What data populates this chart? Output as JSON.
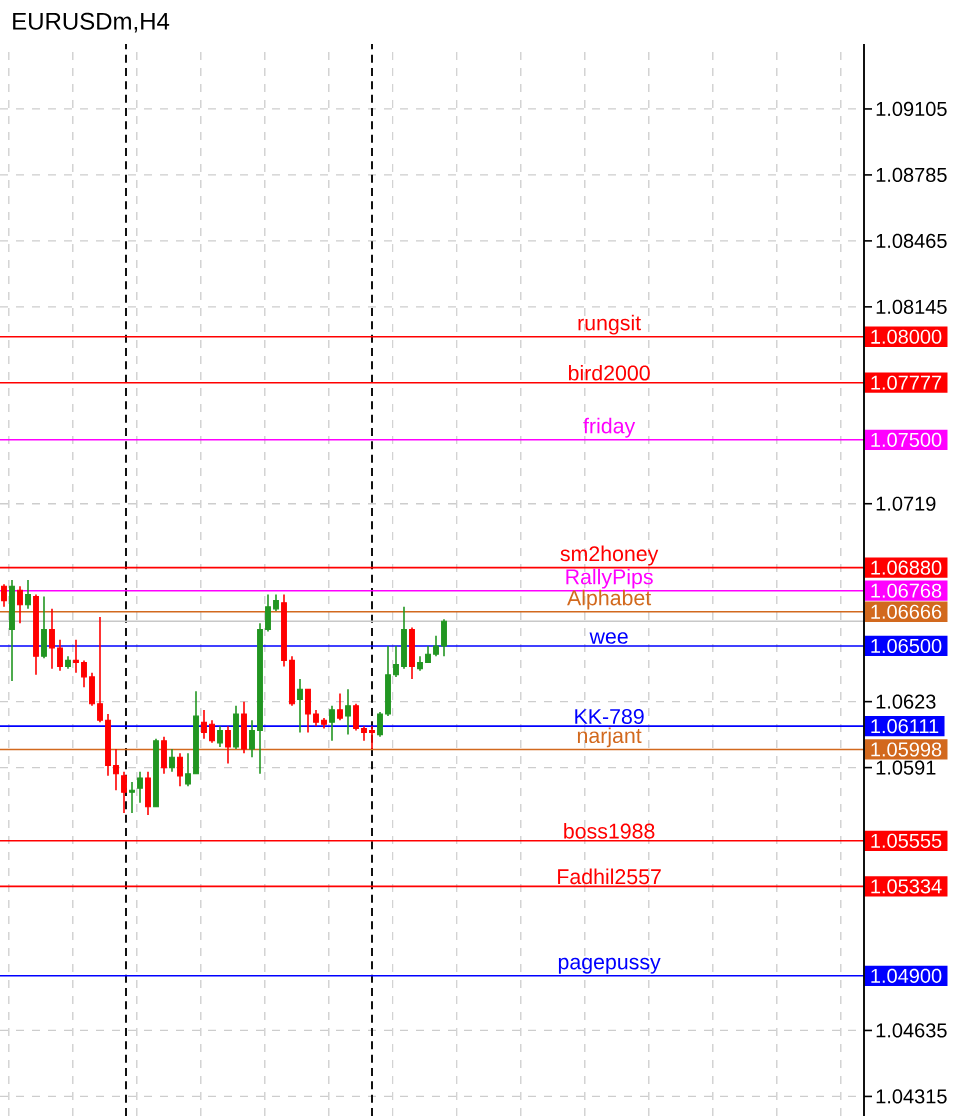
{
  "chart_data": {
    "type": "candlestick",
    "title": "EURUSDm,H4",
    "categories": [
      null,
      null,
      null,
      null,
      null,
      null,
      null,
      null,
      null,
      null,
      null,
      null,
      null,
      null,
      null,
      null,
      null,
      null,
      null,
      null,
      null,
      null,
      null,
      null,
      null,
      null,
      null,
      null,
      null,
      null,
      null,
      null,
      null,
      null,
      null,
      null,
      null,
      null,
      null,
      null,
      null,
      null,
      null,
      null,
      null,
      null,
      null,
      null,
      null,
      null,
      null,
      null,
      null,
      null,
      null,
      null,
      null,
      null,
      null,
      null,
      null,
      null,
      null,
      null,
      null,
      null,
      null,
      null,
      null,
      null,
      null,
      null,
      null,
      null,
      null,
      null,
      null,
      null,
      null,
      null,
      null,
      null,
      null,
      null,
      null,
      null,
      null,
      null,
      null,
      null,
      null,
      null,
      null,
      null,
      null,
      null,
      null,
      null,
      null,
      null,
      null,
      null,
      null,
      null,
      null,
      null,
      null,
      null
    ],
    "ohlc": [
      [
        1.0679,
        1.068,
        1.0669,
        1.0672
      ],
      [
        1.0658,
        1.0682,
        1.0633,
        1.0679
      ],
      [
        1.0677,
        1.0679,
        1.0661,
        1.067
      ],
      [
        1.067,
        1.0682,
        1.0668,
        1.0675
      ],
      [
        1.0674,
        1.0675,
        1.0636,
        1.0645
      ],
      [
        1.0645,
        1.0674,
        1.0644,
        1.0658
      ],
      [
        1.0658,
        1.0668,
        1.0639,
        1.0649
      ],
      [
        1.0649,
        1.0653,
        1.0638,
        1.064
      ],
      [
        1.064,
        1.0645,
        1.0639,
        1.0643
      ],
      [
        1.0643,
        1.0653,
        1.0637,
        1.0642
      ],
      [
        1.0642,
        1.0643,
        1.063,
        1.0635
      ],
      [
        1.0635,
        1.0637,
        1.0621,
        1.0622
      ],
      [
        1.0622,
        1.0664,
        1.0613,
        1.0614
      ],
      [
        1.0614,
        1.0617,
        1.0587,
        1.0592
      ],
      [
        1.0592,
        1.06,
        1.058,
        1.0588
      ],
      [
        1.0587,
        1.0589,
        1.0569,
        1.0579
      ],
      [
        1.0579,
        1.0584,
        1.0569,
        1.058
      ],
      [
        1.0581,
        1.0589,
        1.0574,
        1.0586
      ],
      [
        1.0586,
        1.0589,
        1.0568,
        1.0572
      ],
      [
        1.0572,
        1.0605,
        1.0572,
        1.0604
      ],
      [
        1.0604,
        1.0606,
        1.0588,
        1.0591
      ],
      [
        1.0591,
        1.06,
        1.0589,
        1.0596
      ],
      [
        1.0596,
        1.0598,
        1.0582,
        1.0587
      ],
      [
        1.0583,
        1.0598,
        1.0582,
        1.0588
      ],
      [
        1.0588,
        1.0628,
        1.0588,
        1.0616
      ],
      [
        1.0613,
        1.0619,
        1.0605,
        1.0608
      ],
      [
        1.0612,
        1.0614,
        1.0603,
        1.0604
      ],
      [
        1.0603,
        1.0611,
        1.0601,
        1.0609
      ],
      [
        1.0609,
        1.0611,
        1.0593,
        1.0601
      ],
      [
        1.0601,
        1.0621,
        1.06,
        1.0617
      ],
      [
        1.0617,
        1.0623,
        1.0598,
        1.06
      ],
      [
        1.06,
        1.0614,
        1.0596,
        1.0609
      ],
      [
        1.0609,
        1.0661,
        1.0588,
        1.0658
      ],
      [
        1.0658,
        1.0675,
        1.0657,
        1.0669
      ],
      [
        1.0668,
        1.0675,
        1.0667,
        1.0672
      ],
      [
        1.0671,
        1.0675,
        1.064,
        1.0643
      ],
      [
        1.0643,
        1.0645,
        1.0621,
        1.0622
      ],
      [
        1.0624,
        1.0634,
        1.0608,
        1.0629
      ],
      [
        1.0629,
        1.0629,
        1.0608,
        1.0617
      ],
      [
        1.0617,
        1.0619,
        1.0611,
        1.0613
      ],
      [
        1.0614,
        1.0615,
        1.061,
        1.0612
      ],
      [
        1.0613,
        1.0621,
        1.0604,
        1.0619
      ],
      [
        1.0619,
        1.0627,
        1.0614,
        1.0615
      ],
      [
        1.0616,
        1.0629,
        1.0607,
        1.0621
      ],
      [
        1.0621,
        1.0622,
        1.0609,
        1.061
      ],
      [
        1.061,
        1.0611,
        1.0604,
        1.0608
      ],
      [
        1.0609,
        1.0611,
        1.06,
        1.0608
      ],
      [
        1.0607,
        1.0618,
        1.0606,
        1.0617
      ],
      [
        1.0617,
        1.065,
        1.0616,
        1.0636
      ],
      [
        1.0636,
        1.065,
        1.0635,
        1.0641
      ],
      [
        1.064,
        1.0669,
        1.0639,
        1.0658
      ],
      [
        1.0658,
        1.0659,
        1.0634,
        1.064
      ],
      [
        1.0639,
        1.0645,
        1.0638,
        1.0642
      ],
      [
        1.0642,
        1.065,
        1.0642,
        1.0646
      ],
      [
        1.0646,
        1.0655,
        1.0645,
        1.065
      ],
      [
        1.065,
        1.0663,
        1.0645,
        1.0662
      ],
      null,
      null,
      null,
      null,
      null,
      null,
      null,
      null,
      null,
      null,
      null,
      null,
      null,
      null,
      null,
      null,
      null,
      null,
      null,
      null,
      null,
      null,
      null,
      null,
      null,
      null,
      null,
      null,
      null,
      null,
      null,
      null,
      null,
      null,
      null,
      null,
      null,
      null,
      null,
      null,
      null,
      null,
      null,
      null,
      null,
      null,
      null,
      null,
      null,
      null,
      null,
      null
    ],
    "ylim": [
      1.0422,
      1.0942
    ],
    "yticks": [
      1.09105,
      1.08785,
      1.08465,
      1.08145,
      1.0719,
      1.0623,
      1.0591,
      1.04635,
      1.04315
    ],
    "grid": true,
    "annotations": [
      "1.08000",
      "1.07777",
      "1.07500",
      "1.06880",
      "1.06768",
      "1.06666",
      "1.06500",
      "1.06111",
      "1.05998",
      "1.05555",
      "1.05334",
      "1.04900"
    ],
    "ref_lines": [
      {
        "axis": "y",
        "value": 1.08,
        "label": "rungsit",
        "color": "#ff0000"
      },
      {
        "axis": "y",
        "value": 1.07777,
        "label": "bird2000",
        "color": "#ff0000"
      },
      {
        "axis": "y",
        "value": 1.075,
        "label": "friday",
        "color": "#ff00ff"
      },
      {
        "axis": "y",
        "value": 1.0688,
        "label": "sm2honey",
        "color": "#ff0000"
      },
      {
        "axis": "y",
        "value": 1.06768,
        "label": "RallyPips",
        "color": "#ff00ff"
      },
      {
        "axis": "y",
        "value": 1.06666,
        "label": "Alphabet",
        "color": "#d2691e"
      },
      {
        "axis": "y",
        "value": 1.0662,
        "color": "#c8c8c8"
      },
      {
        "axis": "y",
        "value": 1.065,
        "label": "wee",
        "color": "#0000ff"
      },
      {
        "axis": "y",
        "value": 1.06111,
        "label": "KK-789",
        "color": "#0000ff"
      },
      {
        "axis": "y",
        "value": 1.05998,
        "label": "narjant",
        "color": "#d2691e"
      },
      {
        "axis": "y",
        "value": 1.05555,
        "label": "boss1988",
        "color": "#ff0000"
      },
      {
        "axis": "y",
        "value": 1.05334,
        "label": "Fadhil2557",
        "color": "#ff0000"
      },
      {
        "axis": "y",
        "value": 1.049,
        "label": "pagepussy",
        "color": "#0000ff"
      }
    ]
  }
}
